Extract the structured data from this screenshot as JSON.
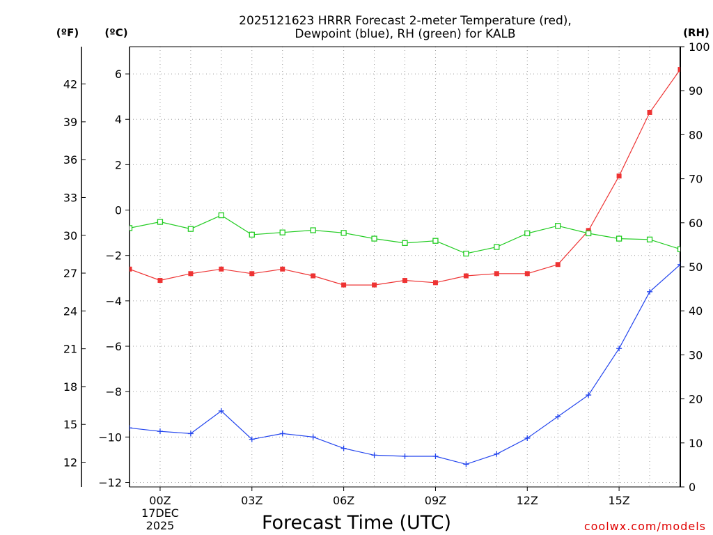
{
  "chart_data": {
    "type": "line",
    "title_line1": "2025121623 HRRR Forecast 2-meter Temperature (red),",
    "title_line2": "Dewpoint (blue), RH (green) for KALB",
    "xlabel": "Forecast Time (UTC)",
    "x_date_line1": "17DEC",
    "x_date_line2": "2025",
    "credit": "coolwx.com/models",
    "x_hours": [
      -1,
      0,
      1,
      2,
      3,
      4,
      5,
      6,
      7,
      8,
      9,
      10,
      11,
      12,
      13,
      14,
      15,
      16,
      17
    ],
    "x_ticks": [
      {
        "h": 0,
        "label": "00Z"
      },
      {
        "h": 3,
        "label": "03Z"
      },
      {
        "h": 6,
        "label": "06Z"
      },
      {
        "h": 9,
        "label": "09Z"
      },
      {
        "h": 12,
        "label": "12Z"
      },
      {
        "h": 15,
        "label": "15Z"
      }
    ],
    "xlim": [
      -1,
      17
    ],
    "y_celsius": {
      "unit_label": "(ºC)",
      "ylim": [
        -12.2,
        7.2
      ],
      "ticks": [
        6,
        4,
        2,
        0,
        -2,
        -4,
        -6,
        -8,
        -10,
        -12
      ],
      "tick_labels": [
        "6",
        "4",
        "2",
        "0",
        "−2",
        "−4",
        "−6",
        "−8",
        "−10",
        "−12"
      ]
    },
    "y_fahrenheit": {
      "unit_label": "(ºF)",
      "ticks": [
        42,
        39,
        36,
        33,
        30,
        27,
        24,
        21,
        18,
        15,
        12
      ],
      "tick_labels": [
        "42",
        "39",
        "36",
        "33",
        "30",
        "27",
        "24",
        "21",
        "18",
        "15",
        "12"
      ]
    },
    "y_rh": {
      "unit_label": "(RH)",
      "ylim": [
        0,
        100
      ],
      "ticks": [
        100,
        90,
        80,
        70,
        60,
        50,
        40,
        30,
        20,
        10,
        0
      ],
      "tick_labels": [
        "100",
        "90",
        "80",
        "70",
        "60",
        "50",
        "40",
        "30",
        "20",
        "10",
        "0"
      ]
    },
    "series": [
      {
        "name": "Temperature",
        "axis": "celsius",
        "color": "#ee3333",
        "marker": "filled-square",
        "values": [
          -2.6,
          -3.1,
          -2.8,
          -2.6,
          -2.8,
          -2.6,
          -2.9,
          -3.3,
          -3.3,
          -3.1,
          -3.2,
          -2.9,
          -2.8,
          -2.8,
          -2.4,
          -0.9,
          1.5,
          4.3,
          6.2
        ]
      },
      {
        "name": "Dewpoint",
        "axis": "celsius",
        "color": "#2244ee",
        "marker": "plus",
        "values": [
          -9.6,
          -9.75,
          -9.85,
          -8.85,
          -10.1,
          -9.85,
          -10.0,
          -10.5,
          -10.8,
          -10.85,
          -10.85,
          -11.2,
          -10.75,
          -10.05,
          -9.1,
          -8.15,
          -6.1,
          -3.6,
          -2.4
        ]
      },
      {
        "name": "RH",
        "axis": "rh",
        "color": "#22cc22",
        "marker": "open-square",
        "values": [
          58.8,
          60.2,
          58.6,
          61.7,
          57.3,
          57.8,
          58.3,
          57.7,
          56.4,
          55.4,
          55.9,
          53.0,
          54.5,
          57.6,
          59.3,
          57.6,
          56.4,
          56.2,
          54.0
        ]
      }
    ]
  }
}
